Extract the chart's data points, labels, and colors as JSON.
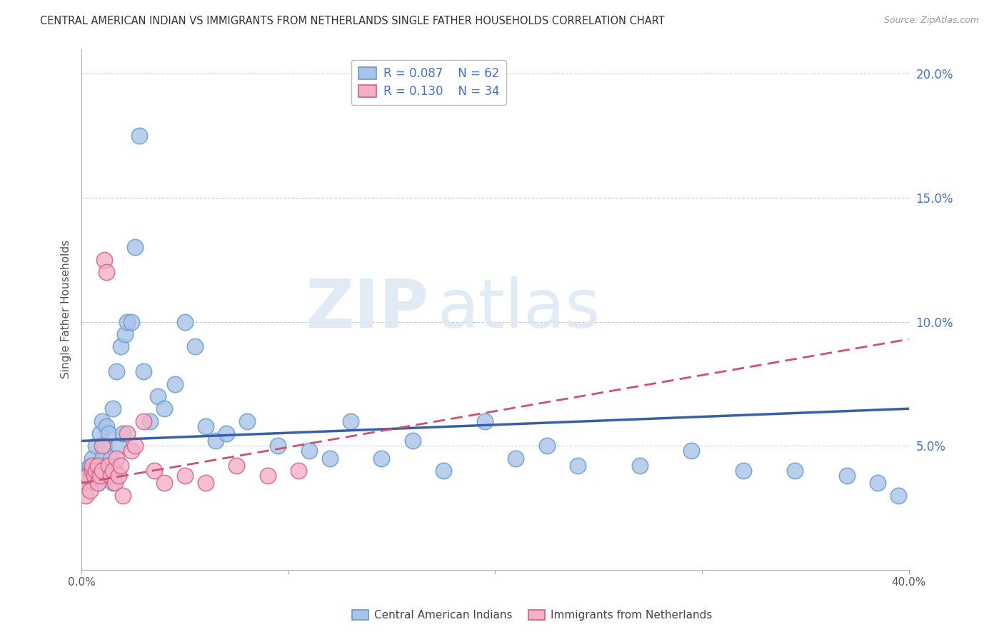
{
  "title": "CENTRAL AMERICAN INDIAN VS IMMIGRANTS FROM NETHERLANDS SINGLE FATHER HOUSEHOLDS CORRELATION CHART",
  "source": "Source: ZipAtlas.com",
  "ylabel": "Single Father Households",
  "xlim": [
    0.0,
    0.4
  ],
  "ylim": [
    0.0,
    0.21
  ],
  "xticks": [
    0.0,
    0.4
  ],
  "xtick_labels": [
    "0.0%",
    "40.0%"
  ],
  "yticks_right": [
    0.05,
    0.1,
    0.15,
    0.2
  ],
  "ytick_labels_right": [
    "5.0%",
    "10.0%",
    "15.0%",
    "20.0%"
  ],
  "legend_blue_r": "0.087",
  "legend_blue_n": "62",
  "legend_pink_r": "0.130",
  "legend_pink_n": "34",
  "blue_color": "#a8c4e8",
  "blue_edge_color": "#6699cc",
  "pink_color": "#f4b0c8",
  "pink_edge_color": "#d06080",
  "trendline_blue_color": "#3a5faa",
  "trendline_pink_color": "#d05070",
  "watermark_zip": "ZIP",
  "watermark_atlas": "atlas",
  "blue_points_x": [
    0.001,
    0.002,
    0.003,
    0.004,
    0.005,
    0.005,
    0.006,
    0.007,
    0.007,
    0.008,
    0.009,
    0.009,
    0.01,
    0.01,
    0.011,
    0.011,
    0.012,
    0.012,
    0.013,
    0.013,
    0.014,
    0.015,
    0.015,
    0.016,
    0.017,
    0.018,
    0.019,
    0.02,
    0.021,
    0.022,
    0.024,
    0.026,
    0.028,
    0.03,
    0.033,
    0.037,
    0.04,
    0.045,
    0.05,
    0.055,
    0.06,
    0.065,
    0.07,
    0.08,
    0.095,
    0.11,
    0.12,
    0.13,
    0.145,
    0.16,
    0.175,
    0.195,
    0.21,
    0.225,
    0.24,
    0.27,
    0.295,
    0.32,
    0.345,
    0.37,
    0.385,
    0.395
  ],
  "blue_points_y": [
    0.04,
    0.038,
    0.035,
    0.042,
    0.04,
    0.045,
    0.038,
    0.042,
    0.05,
    0.035,
    0.038,
    0.055,
    0.045,
    0.06,
    0.038,
    0.05,
    0.042,
    0.058,
    0.04,
    0.055,
    0.045,
    0.035,
    0.065,
    0.04,
    0.08,
    0.05,
    0.09,
    0.055,
    0.095,
    0.1,
    0.1,
    0.13,
    0.175,
    0.08,
    0.06,
    0.07,
    0.065,
    0.075,
    0.1,
    0.09,
    0.058,
    0.052,
    0.055,
    0.06,
    0.05,
    0.048,
    0.045,
    0.06,
    0.045,
    0.052,
    0.04,
    0.06,
    0.045,
    0.05,
    0.042,
    0.042,
    0.048,
    0.04,
    0.04,
    0.038,
    0.035,
    0.03
  ],
  "pink_points_x": [
    0.001,
    0.002,
    0.003,
    0.004,
    0.005,
    0.005,
    0.006,
    0.007,
    0.008,
    0.008,
    0.009,
    0.01,
    0.01,
    0.011,
    0.012,
    0.013,
    0.014,
    0.015,
    0.016,
    0.017,
    0.018,
    0.019,
    0.02,
    0.022,
    0.024,
    0.026,
    0.03,
    0.035,
    0.04,
    0.05,
    0.06,
    0.075,
    0.09,
    0.105
  ],
  "pink_points_y": [
    0.035,
    0.03,
    0.038,
    0.032,
    0.04,
    0.042,
    0.038,
    0.04,
    0.035,
    0.042,
    0.038,
    0.04,
    0.05,
    0.125,
    0.12,
    0.042,
    0.038,
    0.04,
    0.035,
    0.045,
    0.038,
    0.042,
    0.03,
    0.055,
    0.048,
    0.05,
    0.06,
    0.04,
    0.035,
    0.038,
    0.035,
    0.042,
    0.038,
    0.04
  ],
  "blue_trend_x0": 0.0,
  "blue_trend_x1": 0.4,
  "blue_trend_y0": 0.052,
  "blue_trend_y1": 0.065,
  "pink_trend_x0": 0.0,
  "pink_trend_x1": 0.4,
  "pink_trend_y0": 0.035,
  "pink_trend_y1": 0.093
}
